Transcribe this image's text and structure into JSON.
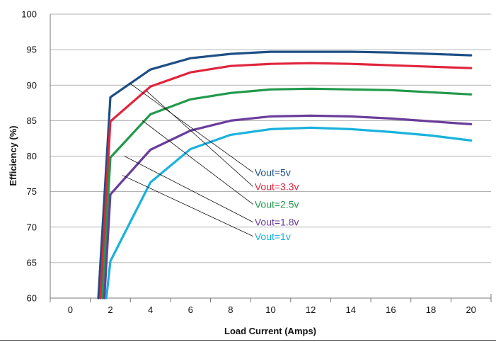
{
  "chart_data": {
    "type": "line",
    "xlabel": "Load Current (Amps)",
    "ylabel": "Efficiency (%)",
    "xlim": [
      -1,
      21
    ],
    "ylim": [
      60,
      100
    ],
    "x_ticks": [
      0,
      2,
      4,
      6,
      8,
      10,
      12,
      14,
      16,
      18,
      20
    ],
    "x_tick_labels": [
      "0",
      "2",
      "4",
      "6",
      "8",
      "10",
      "12",
      "14",
      "16",
      "18",
      "20"
    ],
    "y_ticks": [
      60,
      65,
      70,
      75,
      80,
      85,
      90,
      95,
      100
    ],
    "y_tick_labels": [
      "60",
      "65",
      "70",
      "75",
      "80",
      "85",
      "90",
      "95",
      "100"
    ],
    "grid": "horizontal",
    "series": [
      {
        "name": "Vout=5v",
        "color": "#1d4f86",
        "x": [
          1.4,
          2,
          4,
          6,
          8,
          10,
          12,
          14,
          16,
          18,
          20
        ],
        "y": [
          60,
          88.3,
          92.2,
          93.8,
          94.4,
          94.7,
          94.7,
          94.7,
          94.6,
          94.4,
          94.2
        ],
        "callout_from": [
          3,
          90.2
        ]
      },
      {
        "name": "Vout=3.3v",
        "color": "#e0253c",
        "x": [
          1.5,
          2,
          4,
          6,
          8,
          10,
          12,
          14,
          16,
          18,
          20
        ],
        "y": [
          60,
          84.9,
          89.8,
          91.8,
          92.7,
          93.0,
          93.1,
          93.0,
          92.8,
          92.6,
          92.4
        ],
        "callout_from": [
          3.8,
          89.2
        ]
      },
      {
        "name": "Vout=2.5v",
        "color": "#21994a",
        "x": [
          1.6,
          2,
          4,
          6,
          8,
          10,
          12,
          14,
          16,
          18,
          20
        ],
        "y": [
          60,
          79.8,
          85.9,
          88.0,
          88.9,
          89.4,
          89.5,
          89.4,
          89.3,
          89.0,
          88.7
        ],
        "callout_from": [
          3.6,
          85.0
        ]
      },
      {
        "name": "Vout=1.8v",
        "color": "#6a3d9a",
        "x": [
          1.7,
          2,
          4,
          6,
          8,
          10,
          12,
          14,
          16,
          18,
          20
        ],
        "y": [
          60,
          74.6,
          80.9,
          83.6,
          85.0,
          85.6,
          85.7,
          85.6,
          85.3,
          84.9,
          84.5
        ],
        "callout_from": [
          2.7,
          80.0
        ]
      },
      {
        "name": "Vout=1v",
        "color": "#19b2dc",
        "x": [
          1.8,
          2,
          4,
          6,
          8,
          10,
          12,
          14,
          16,
          18,
          20
        ],
        "y": [
          60,
          65.2,
          76.3,
          81.0,
          83.0,
          83.8,
          84.0,
          83.8,
          83.4,
          82.9,
          82.2
        ],
        "callout_from": [
          2.6,
          77.3
        ]
      }
    ],
    "callout_labels": [
      {
        "text": "Vout=5v",
        "x": 9.2,
        "y": 77.2
      },
      {
        "text": "Vout=3.3v",
        "x": 9.2,
        "y": 75.2
      },
      {
        "text": "Vout=2.5v",
        "x": 9.2,
        "y": 72.7
      },
      {
        "text": "Vout=1.8v",
        "x": 9.2,
        "y": 70.2
      },
      {
        "text": "Vout=1v",
        "x": 9.2,
        "y": 68.2
      }
    ]
  }
}
